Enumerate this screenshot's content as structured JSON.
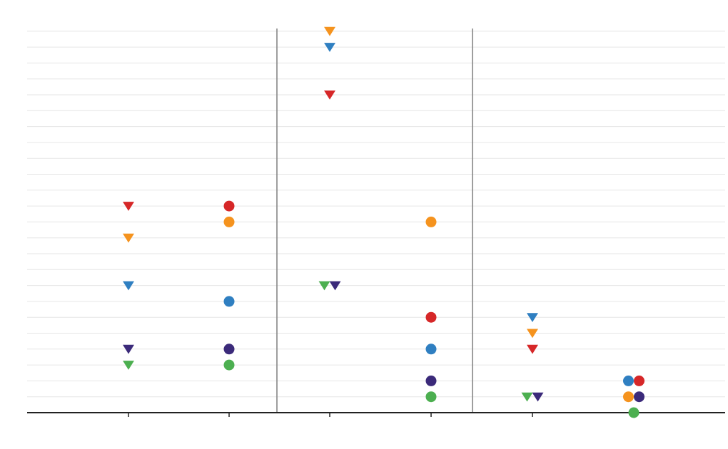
{
  "chart_data": {
    "type": "scatter",
    "panels": [
      {
        "categories": [
          "",
          ""
        ]
      },
      {
        "categories": [
          "",
          ""
        ]
      },
      {
        "categories": [
          "",
          ""
        ]
      }
    ],
    "y_levels": 24,
    "colors": {
      "red": "#d62728",
      "orange": "#f5931e",
      "blue": "#2f7fc1",
      "navy": "#3b2a7a",
      "green": "#4caf50",
      "grid": "#e6e6e6",
      "divider": "#7f7f7f",
      "axis": "#222222"
    },
    "series": [
      {
        "color": "red",
        "marker": "triangle-down",
        "points": [
          {
            "panel": 0,
            "cat": 0,
            "y": 13
          },
          {
            "panel": 1,
            "cat": 0,
            "y": 20
          },
          {
            "panel": 2,
            "cat": 0,
            "y": 4
          }
        ]
      },
      {
        "color": "orange",
        "marker": "triangle-down",
        "points": [
          {
            "panel": 0,
            "cat": 0,
            "y": 11
          },
          {
            "panel": 1,
            "cat": 0,
            "y": 24
          },
          {
            "panel": 2,
            "cat": 0,
            "y": 5
          }
        ]
      },
      {
        "color": "blue",
        "marker": "triangle-down",
        "points": [
          {
            "panel": 0,
            "cat": 0,
            "y": 8
          },
          {
            "panel": 1,
            "cat": 0,
            "y": 23
          },
          {
            "panel": 2,
            "cat": 0,
            "y": 6
          }
        ]
      },
      {
        "color": "navy",
        "marker": "triangle-down",
        "points": [
          {
            "panel": 0,
            "cat": 0,
            "y": 4
          },
          {
            "panel": 1,
            "cat": 0,
            "y": 8,
            "dx": 1
          },
          {
            "panel": 2,
            "cat": 0,
            "y": 1,
            "dx": 1
          }
        ]
      },
      {
        "color": "green",
        "marker": "triangle-down",
        "points": [
          {
            "panel": 0,
            "cat": 0,
            "y": 3
          },
          {
            "panel": 1,
            "cat": 0,
            "y": 8,
            "dx": -1
          },
          {
            "panel": 2,
            "cat": 0,
            "y": 1,
            "dx": -1
          }
        ]
      },
      {
        "color": "red",
        "marker": "circle",
        "points": [
          {
            "panel": 0,
            "cat": 1,
            "y": 13
          },
          {
            "panel": 1,
            "cat": 1,
            "y": 6
          },
          {
            "panel": 2,
            "cat": 1,
            "y": 2,
            "dx": 1
          }
        ]
      },
      {
        "color": "orange",
        "marker": "circle",
        "points": [
          {
            "panel": 0,
            "cat": 1,
            "y": 12
          },
          {
            "panel": 1,
            "cat": 1,
            "y": 12
          },
          {
            "panel": 2,
            "cat": 1,
            "y": 1,
            "dx": -1
          }
        ]
      },
      {
        "color": "blue",
        "marker": "circle",
        "points": [
          {
            "panel": 0,
            "cat": 1,
            "y": 7
          },
          {
            "panel": 1,
            "cat": 1,
            "y": 4
          },
          {
            "panel": 2,
            "cat": 1,
            "y": 2,
            "dx": -1
          }
        ]
      },
      {
        "color": "navy",
        "marker": "circle",
        "points": [
          {
            "panel": 0,
            "cat": 1,
            "y": 4
          },
          {
            "panel": 1,
            "cat": 1,
            "y": 2
          },
          {
            "panel": 2,
            "cat": 1,
            "y": 1,
            "dx": 1
          }
        ]
      },
      {
        "color": "green",
        "marker": "circle",
        "points": [
          {
            "panel": 0,
            "cat": 1,
            "y": 3
          },
          {
            "panel": 1,
            "cat": 1,
            "y": 1
          },
          {
            "panel": 2,
            "cat": 1,
            "y": 0
          }
        ]
      }
    ]
  }
}
